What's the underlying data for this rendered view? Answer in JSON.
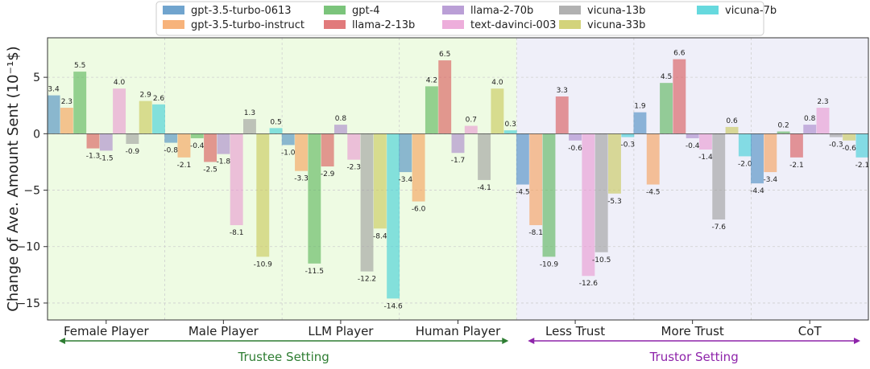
{
  "chart_data": {
    "type": "bar",
    "title": "",
    "xlabel": "",
    "ylabel": "Change of Ave. Amount Sent (10⁻¹$)",
    "ylim": [
      -16.5,
      8.5
    ],
    "yticks": [
      -15,
      -10,
      -5,
      0,
      5
    ],
    "grid": true,
    "legend_position": "top-center",
    "categories": [
      "Female Player",
      "Male Player",
      "LLM Player",
      "Human Player",
      "Less Trust",
      "More Trust",
      "CoT"
    ],
    "series": [
      {
        "name": "gpt-3.5-turbo-0613",
        "color": "#4c8dc2",
        "values": [
          3.4,
          -0.8,
          -1.0,
          -3.4,
          -4.5,
          1.9,
          -4.4
        ]
      },
      {
        "name": "gpt-3.5-turbo-instruct",
        "color": "#f5a05a",
        "values": [
          2.3,
          -2.1,
          -3.3,
          -6.0,
          -8.1,
          -4.5,
          -3.4
        ]
      },
      {
        "name": "gpt-4",
        "color": "#5ab55a",
        "values": [
          5.5,
          -0.4,
          -11.5,
          4.2,
          -10.9,
          4.5,
          0.2
        ]
      },
      {
        "name": "llama-2-13b",
        "color": "#d9595a",
        "values": [
          -1.3,
          -2.5,
          -2.9,
          6.5,
          3.3,
          6.6,
          -2.1
        ]
      },
      {
        "name": "llama-2-70b",
        "color": "#a987cc",
        "values": [
          -1.5,
          -1.8,
          0.8,
          -1.7,
          -0.6,
          -0.4,
          0.8
        ]
      },
      {
        "name": "text-davinci-003",
        "color": "#e99ad2",
        "values": [
          4.0,
          -8.1,
          -2.3,
          0.7,
          -12.6,
          -1.4,
          2.3
        ]
      },
      {
        "name": "vicuna-13b",
        "color": "#9e9e9e",
        "values": [
          -0.9,
          1.3,
          -12.2,
          -4.1,
          -10.5,
          -7.6,
          -0.3
        ]
      },
      {
        "name": "vicuna-33b",
        "color": "#c8c85a",
        "values": [
          2.9,
          -10.9,
          -8.4,
          4.0,
          -5.3,
          0.6,
          -0.6
        ]
      },
      {
        "name": "vicuna-7b",
        "color": "#40cfd6",
        "values": [
          2.6,
          0.5,
          -14.6,
          0.3,
          -0.3,
          -2.0,
          -2.1
        ]
      }
    ],
    "groups": [
      {
        "label": "Trustee Setting",
        "color": "#2e7d32",
        "bg": "#eefbe3",
        "range": [
          0,
          3
        ]
      },
      {
        "label": "Trustor Setting",
        "color": "#8e24aa",
        "bg": "#efeff9",
        "range": [
          4,
          6
        ]
      }
    ]
  }
}
